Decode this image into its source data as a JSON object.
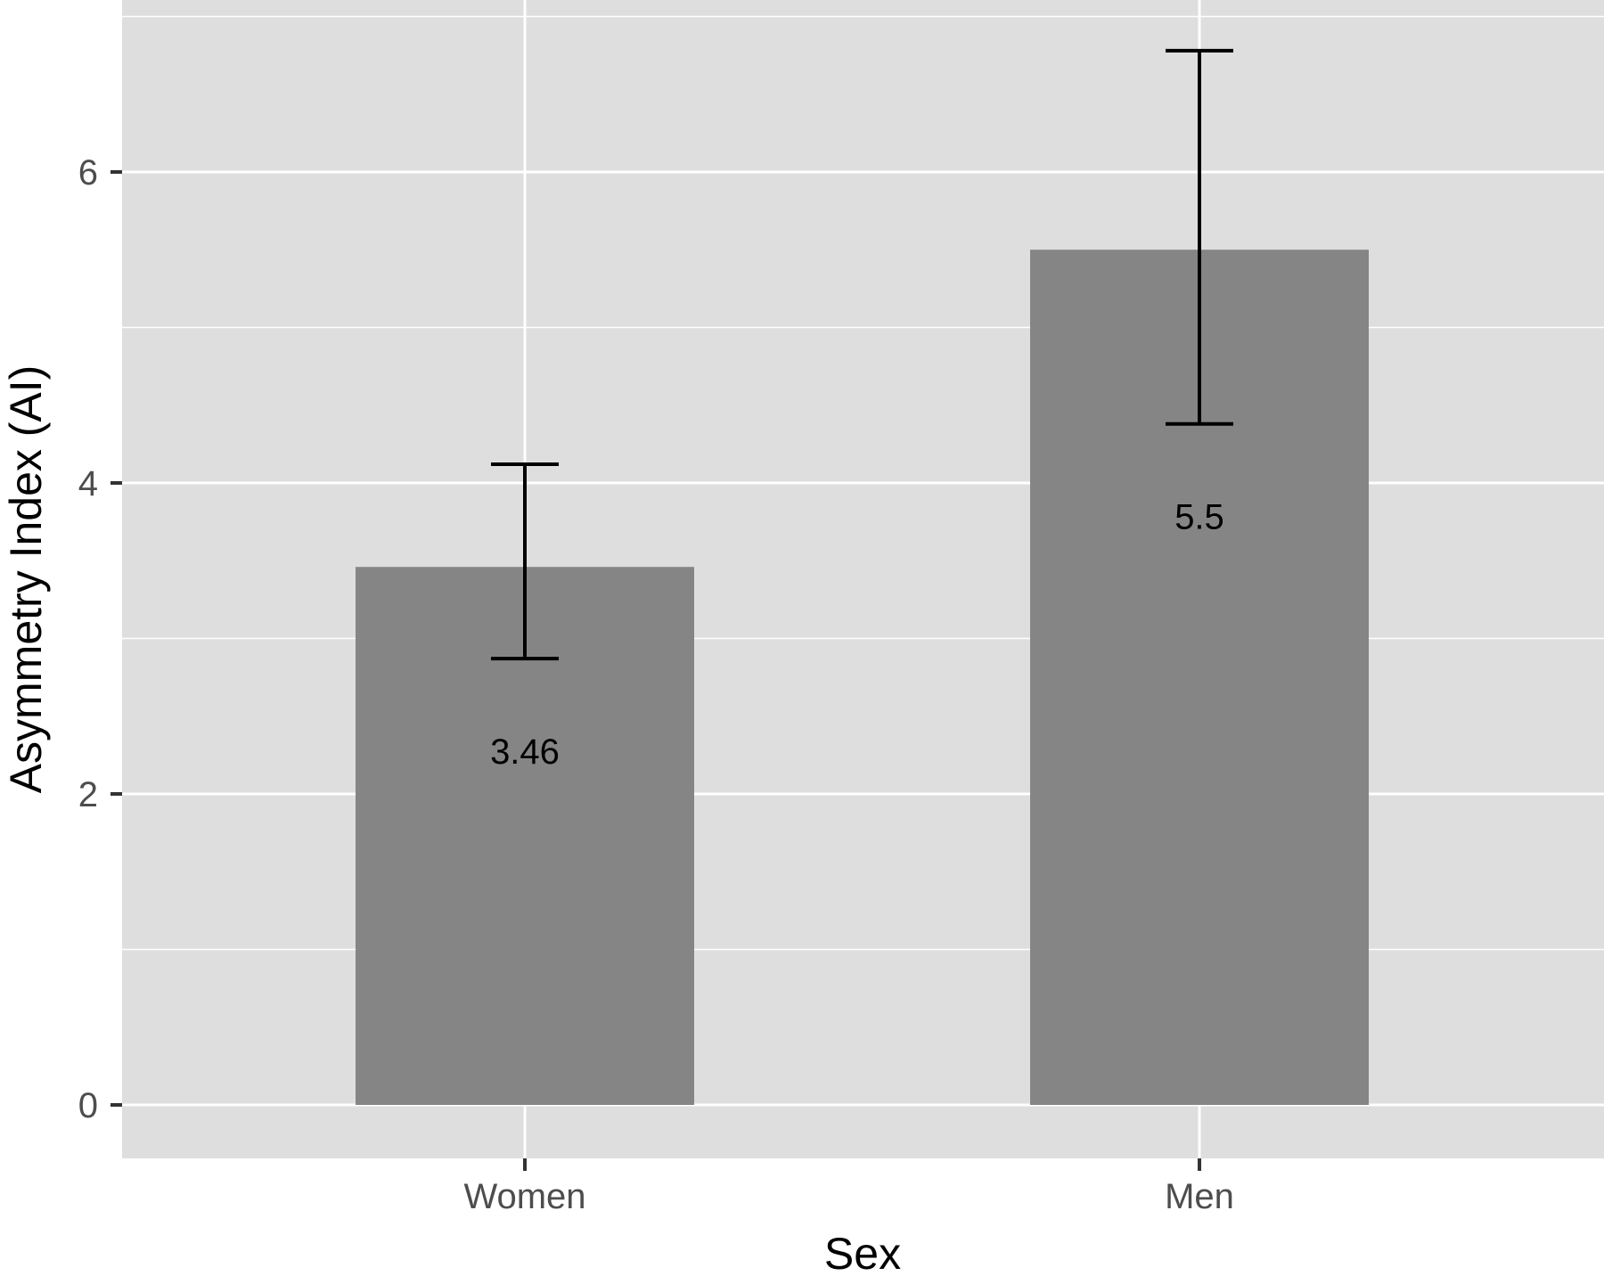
{
  "chart_data": {
    "type": "bar",
    "categories": [
      "Women",
      "Men"
    ],
    "values": [
      3.46,
      5.5
    ],
    "value_labels": [
      "3.46",
      "5.5"
    ],
    "error_bars": [
      {
        "lower": 2.87,
        "upper": 4.12
      },
      {
        "lower": 4.38,
        "upper": 6.78
      }
    ],
    "title": "",
    "xlabel": "Sex",
    "ylabel": "Asymmetry Index (AI)",
    "ylim": [
      -0.34,
      7.0
    ],
    "yticks": [
      0,
      2,
      4,
      6
    ],
    "ytick_labels": [
      "0",
      "2",
      "4",
      "6"
    ],
    "grid": true,
    "legend": "none",
    "colors": {
      "panel_background": "#dedede",
      "bar_fill": "#858585",
      "grid_line": "#ffffff",
      "error_bar": "#000000"
    }
  }
}
